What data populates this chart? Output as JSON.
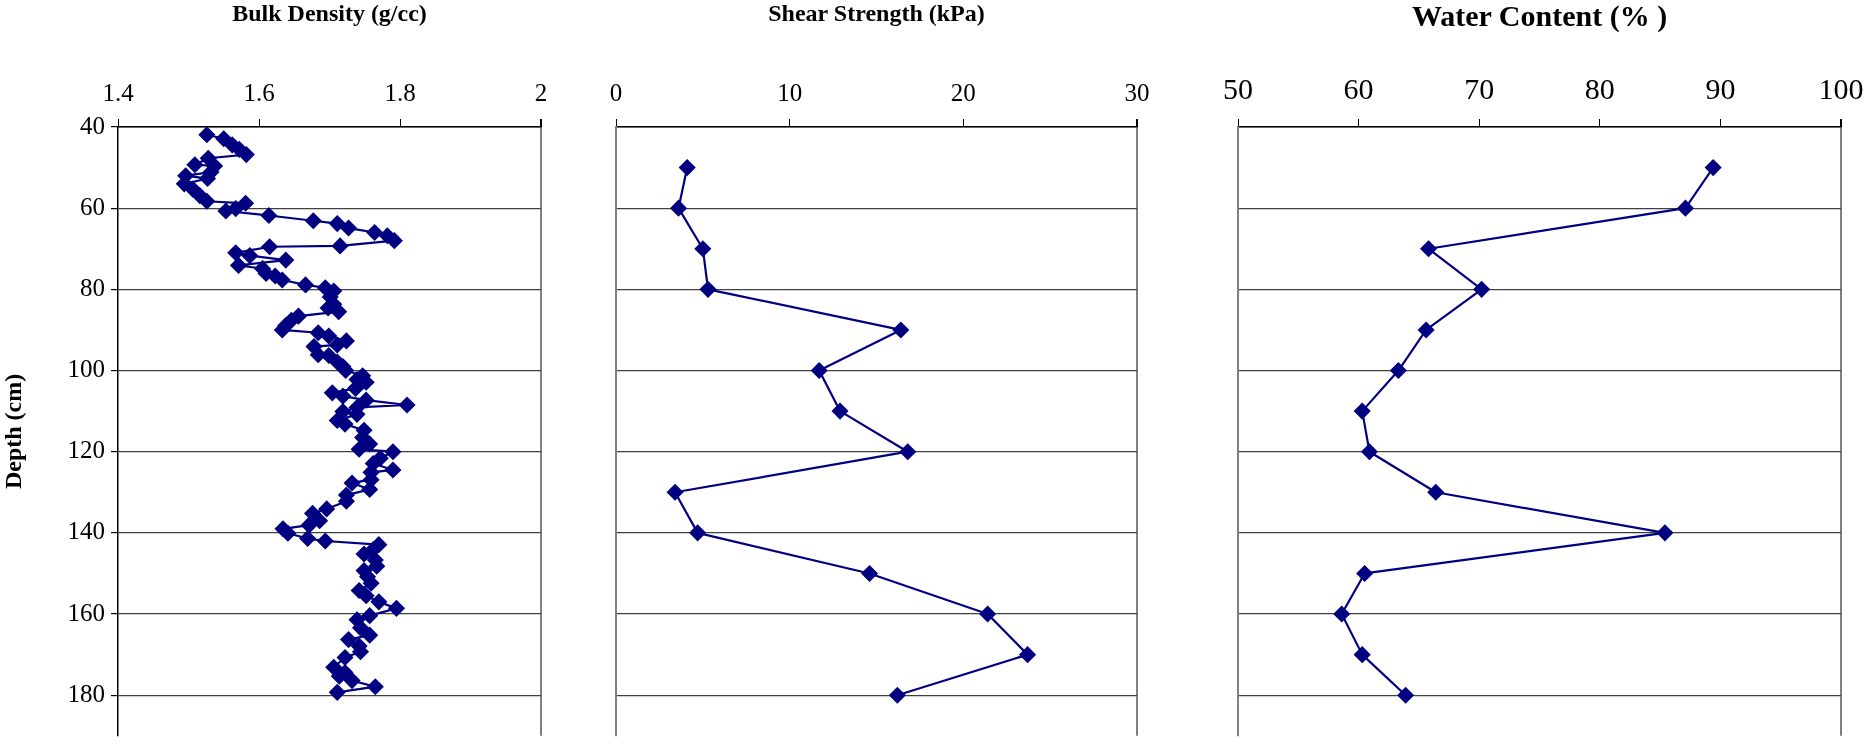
{
  "chart_data": [
    {
      "type": "line",
      "xlabel": "Bulk Density (g/cc)",
      "ylabel": "Depth (cm)",
      "xlim": [
        1.4,
        2
      ],
      "xticks": [
        1.4,
        1.6,
        1.8,
        2
      ],
      "ylim": [
        190,
        40
      ],
      "yticks": [
        40,
        60,
        80,
        100,
        120,
        140,
        160,
        180
      ],
      "grid": "y",
      "marker": "diamond",
      "line_style": "solid",
      "series": [
        {
          "color": "#000080",
          "x": [
            1.526,
            1.55,
            1.562,
            1.572,
            1.582,
            1.528,
            1.509,
            1.537,
            1.532,
            1.496,
            1.527,
            1.494,
            1.506,
            1.516,
            1.526,
            1.581,
            1.567,
            1.553,
            1.614,
            1.677,
            1.711,
            1.727,
            1.764,
            1.782,
            1.792,
            1.715,
            1.615,
            1.567,
            1.587,
            1.638,
            1.571,
            1.605,
            1.61,
            1.623,
            1.633,
            1.666,
            1.694,
            1.706,
            1.701,
            1.706,
            1.698,
            1.713,
            1.656,
            1.646,
            1.638,
            1.633,
            1.684,
            1.699,
            1.724,
            1.711,
            1.678,
            1.684,
            1.699,
            1.711,
            1.719,
            1.723,
            1.747,
            1.739,
            1.752,
            1.737,
            1.704,
            1.719,
            1.752,
            1.81,
            1.739,
            1.719,
            1.739,
            1.711,
            1.722,
            1.749,
            1.747,
            1.757,
            1.742,
            1.79,
            1.772,
            1.762,
            1.79,
            1.759,
            1.759,
            1.732,
            1.757,
            1.724,
            1.724,
            1.696,
            1.676,
            1.686,
            1.671,
            1.634,
            1.641,
            1.669,
            1.694,
            1.77,
            1.762,
            1.749,
            1.765,
            1.767,
            1.749,
            1.754,
            1.759,
            1.742,
            1.752,
            1.77,
            1.795,
            1.757,
            1.739,
            1.744,
            1.757,
            1.727,
            1.742,
            1.744,
            1.722,
            1.706,
            1.722,
            1.714,
            1.732,
            1.765,
            1.711
          ],
          "values": [
            41.9,
            42.9,
            44.4,
            45.5,
            46.8,
            47.7,
            49.3,
            49.6,
            51.1,
            52.0,
            52.7,
            54.0,
            55.3,
            56.9,
            58.3,
            58.8,
            60.1,
            60.7,
            61.8,
            63.1,
            63.8,
            64.9,
            66.0,
            66.8,
            68.0,
            69.3,
            69.5,
            71.0,
            71.7,
            72.8,
            74.1,
            74.9,
            76.1,
            76.7,
            77.7,
            78.9,
            79.6,
            80.4,
            81.9,
            83.7,
            84.6,
            85.5,
            86.6,
            87.6,
            88.9,
            90.0,
            90.7,
            91.5,
            92.7,
            93.7,
            94.1,
            96.1,
            96.3,
            97.9,
            99.0,
            100.0,
            101.3,
            102.2,
            102.9,
            104.4,
            105.5,
            106.3,
            107.3,
            108.5,
            109.1,
            110.1,
            110.8,
            112.3,
            113.2,
            114.7,
            116.5,
            118.1,
            119.4,
            120.0,
            121.6,
            122.9,
            124.5,
            125.1,
            126.9,
            127.7,
            129.3,
            130.7,
            132.2,
            134.1,
            135.2,
            137.0,
            138.1,
            139.0,
            140.1,
            141.4,
            142.0,
            142.9,
            144.1,
            145.2,
            146.7,
            148.2,
            149.3,
            150.8,
            152.4,
            154.2,
            155.5,
            157.0,
            158.6,
            160.4,
            161.4,
            163.4,
            165.2,
            166.3,
            167.9,
            169.3,
            170.7,
            173.1,
            174.4,
            175.3,
            176.4,
            177.9,
            179.3
          ]
        }
      ]
    },
    {
      "type": "line",
      "xlabel": "Shear Strength (kPa)",
      "xlim": [
        0,
        30
      ],
      "xticks": [
        0,
        10,
        20,
        30
      ],
      "ylim": [
        190,
        40
      ],
      "yticks": [
        40,
        60,
        80,
        100,
        120,
        140,
        160,
        180
      ],
      "grid": "y",
      "tick_labels": "x",
      "marker": "diamond",
      "line_style": "solid",
      "series": [
        {
          "color": "#000080",
          "x": [
            4.1,
            3.6,
            5.0,
            5.3,
            16.4,
            11.7,
            12.9,
            16.8,
            3.4,
            4.7,
            14.6,
            21.4,
            23.7,
            16.2
          ],
          "values": [
            50,
            60,
            70,
            80,
            90,
            100,
            110,
            120,
            130,
            140,
            150,
            160,
            170,
            180
          ]
        }
      ]
    },
    {
      "type": "line",
      "xlabel": "Water Content (% )",
      "xlim": [
        50,
        100
      ],
      "xticks": [
        50,
        60,
        70,
        80,
        90,
        100
      ],
      "ylim": [
        190,
        40
      ],
      "yticks": [
        40,
        60,
        80,
        100,
        120,
        140,
        160,
        180
      ],
      "grid": "y",
      "tick_labels": "x",
      "marker": "diamond",
      "line_style": "solid",
      "series": [
        {
          "color": "#000080",
          "x": [
            89.4,
            87.1,
            65.8,
            70.2,
            65.6,
            63.3,
            60.3,
            60.9,
            66.4,
            85.4,
            60.5,
            58.6,
            60.3,
            63.9
          ],
          "values": [
            50,
            60,
            70,
            80,
            90,
            100,
            110,
            120,
            130,
            140,
            150,
            160,
            170,
            180
          ]
        }
      ]
    }
  ]
}
